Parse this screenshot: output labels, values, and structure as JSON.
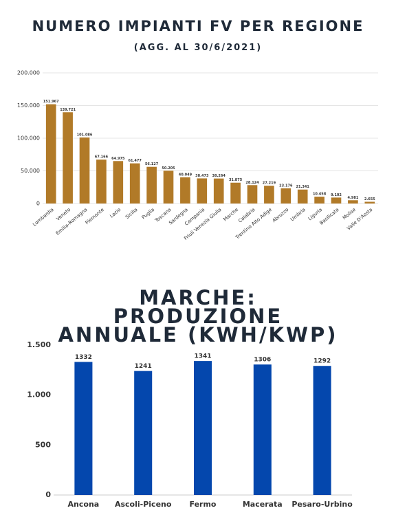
{
  "chart_data": [
    {
      "type": "bar",
      "title": "NUMERO IMPIANTI FV PER REGIONE",
      "subtitle": "(AGG. AL 30/6/2021)",
      "categories": [
        "Lombardia",
        "Veneto",
        "Emilia-Romagna",
        "Piemonte",
        "Lazio",
        "Sicilia",
        "Puglia",
        "Toscana",
        "Sardegna",
        "Campania",
        "Friuli Venezia Giulia",
        "Marche",
        "Calabria",
        "Trentino Alto Adige",
        "Abruzzo",
        "Umbria",
        "Liguria",
        "Basilicata",
        "Molise",
        "Valle D'Aosta"
      ],
      "values": [
        151967,
        139721,
        101086,
        67166,
        64975,
        61477,
        56127,
        50205,
        40049,
        38473,
        38264,
        31875,
        28124,
        27219,
        23176,
        21341,
        10458,
        9102,
        4981,
        2655
      ],
      "value_labels": [
        "151.967",
        "139.721",
        "101.086",
        "67.166",
        "64.975",
        "61.477",
        "56.127",
        "50.205",
        "40.049",
        "38.473",
        "38.264",
        "31.875",
        "28.124",
        "27.219",
        "23.176",
        "21.341",
        "10.458",
        "9.102",
        "4.981",
        "2.655"
      ],
      "color": "#b17a28",
      "ylim": [
        0,
        200000
      ],
      "yticks": [
        0,
        {
          "value": 50000,
          "label": "50.000"
        },
        {
          "value": 100000,
          "label": "100.000"
        },
        {
          "value": 150000,
          "label": "150.000"
        },
        {
          "value": 200000,
          "label": "200.000"
        }
      ],
      "grid": true
    },
    {
      "type": "bar",
      "title": "MARCHE: PRODUZIONE ANNUALE (KWH/KWP)",
      "categories": [
        "Ancona",
        "Ascoli-Piceno",
        "Fermo",
        "Macerata",
        "Pesaro-Urbino"
      ],
      "values": [
        1332,
        1241,
        1341,
        1306,
        1292
      ],
      "color": "#0447ad",
      "ylim": [
        0,
        1500
      ],
      "yticks": [
        0,
        500,
        {
          "value": 1000,
          "label": "1.000"
        },
        {
          "value": 1500,
          "label": "1.500"
        }
      ],
      "grid": false
    }
  ]
}
